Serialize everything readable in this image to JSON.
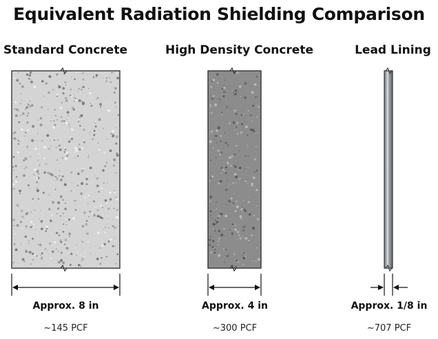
{
  "title": "Equivalent Radiation Shielding Comparison",
  "materials": [
    {
      "name": "Standard Concrete",
      "thickness_label": "Approx. 8 in",
      "density_label": "~145 PCF",
      "fill_color": "#d4d4d4"
    },
    {
      "name": "High Density Concrete",
      "thickness_label": "Approx. 4 in",
      "density_label": "~300 PCF",
      "fill_color": "#8c8c8c"
    },
    {
      "name": "Lead Lining",
      "thickness_label": "Approx. 1/8 in",
      "density_label": "~707 PCF",
      "fill_color": "#9aa0a6"
    }
  ]
}
